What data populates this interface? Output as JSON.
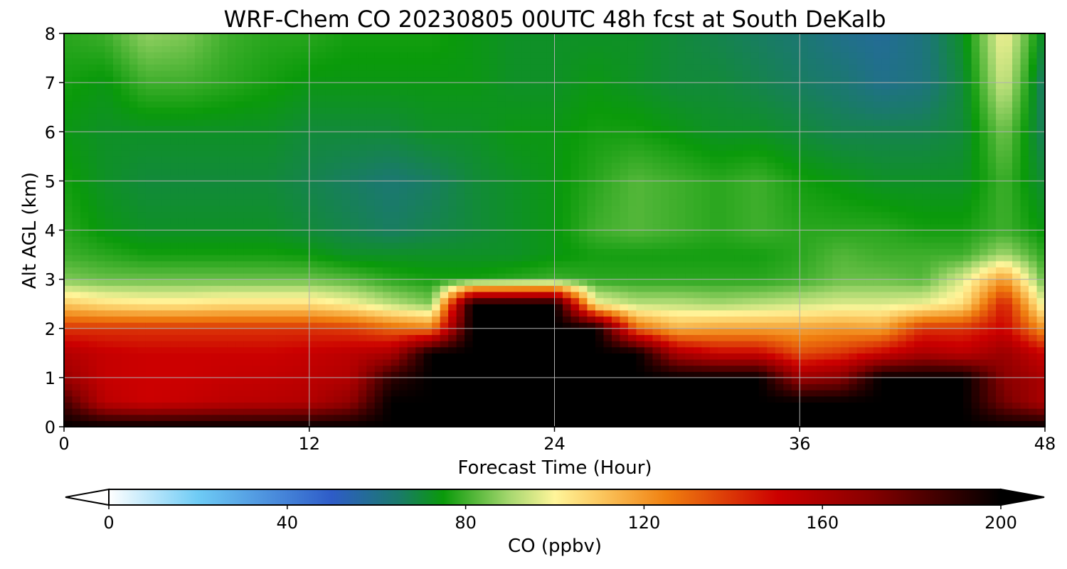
{
  "chart_data": {
    "type": "heatmap",
    "subtype": "filled-contour",
    "title": "WRF-Chem CO  20230805 00UTC 48h fcst at South DeKalb",
    "xlabel": "Forecast Time (Hour)",
    "ylabel": "Alt AGL (km)",
    "xlim": [
      0,
      48
    ],
    "ylim": [
      0,
      8
    ],
    "xticks": [
      "0",
      "12",
      "24",
      "36",
      "48"
    ],
    "yticks": [
      "0",
      "1",
      "2",
      "3",
      "4",
      "5",
      "6",
      "7",
      "8"
    ],
    "grid": true,
    "colorbar": {
      "label": "CO  (ppbv)",
      "orientation": "horizontal",
      "extend": "both",
      "range": [
        0,
        200
      ],
      "ticks": [
        "0",
        "40",
        "80",
        "120",
        "160",
        "200"
      ],
      "stops": [
        {
          "value": 0,
          "color": "#ffffff"
        },
        {
          "value": 20,
          "color": "#6ecbf5"
        },
        {
          "value": 50,
          "color": "#2e5cc8"
        },
        {
          "value": 65,
          "color": "#1a7a6a"
        },
        {
          "value": 75,
          "color": "#0a9a0a"
        },
        {
          "value": 90,
          "color": "#a8d870"
        },
        {
          "value": 100,
          "color": "#fff59a"
        },
        {
          "value": 110,
          "color": "#fbc860"
        },
        {
          "value": 125,
          "color": "#f08010"
        },
        {
          "value": 150,
          "color": "#cc0000"
        },
        {
          "value": 170,
          "color": "#8a0000"
        },
        {
          "value": 200,
          "color": "#000000"
        }
      ]
    },
    "x": [
      0,
      2,
      4,
      6,
      8,
      10,
      12,
      14,
      16,
      18,
      20,
      22,
      24,
      26,
      28,
      30,
      32,
      34,
      36,
      38,
      40,
      42,
      44,
      46,
      48
    ],
    "y": [
      0,
      0.5,
      1,
      1.5,
      2,
      2.5,
      3,
      3.5,
      4,
      5,
      6,
      7,
      8
    ],
    "z": [
      [
        200,
        200,
        200,
        200,
        200,
        200,
        200,
        200,
        200,
        200,
        200,
        200,
        200,
        200,
        200,
        200,
        200,
        200,
        200,
        200,
        200,
        200,
        200,
        200,
        200
      ],
      [
        185,
        155,
        150,
        152,
        155,
        156,
        158,
        168,
        200,
        200,
        200,
        200,
        200,
        200,
        200,
        200,
        200,
        200,
        200,
        200,
        200,
        200,
        200,
        175,
        160
      ],
      [
        165,
        152,
        150,
        150,
        152,
        153,
        155,
        158,
        190,
        200,
        200,
        200,
        200,
        200,
        200,
        200,
        200,
        200,
        165,
        170,
        200,
        200,
        200,
        170,
        160
      ],
      [
        158,
        152,
        150,
        150,
        150,
        150,
        152,
        155,
        160,
        200,
        200,
        200,
        200,
        200,
        200,
        160,
        150,
        150,
        135,
        140,
        150,
        160,
        155,
        165,
        150
      ],
      [
        140,
        140,
        140,
        140,
        140,
        140,
        140,
        138,
        130,
        125,
        200,
        200,
        200,
        200,
        130,
        115,
        118,
        118,
        118,
        120,
        118,
        140,
        140,
        150,
        120
      ],
      [
        110,
        105,
        103,
        103,
        105,
        105,
        105,
        100,
        92,
        86,
        200,
        200,
        200,
        100,
        92,
        92,
        90,
        92,
        94,
        96,
        96,
        98,
        105,
        145,
        95
      ],
      [
        86,
        84,
        84,
        84,
        84,
        84,
        84,
        82,
        78,
        76,
        76,
        78,
        80,
        78,
        78,
        78,
        78,
        78,
        80,
        84,
        84,
        82,
        96,
        120,
        82
      ],
      [
        80,
        78,
        76,
        76,
        76,
        76,
        75,
        72,
        72,
        72,
        72,
        72,
        74,
        76,
        76,
        76,
        76,
        76,
        78,
        82,
        80,
        80,
        80,
        90,
        78
      ],
      [
        78,
        74,
        72,
        72,
        72,
        72,
        70,
        68,
        66,
        68,
        70,
        72,
        74,
        80,
        82,
        80,
        78,
        80,
        78,
        78,
        78,
        76,
        76,
        80,
        74
      ],
      [
        76,
        72,
        70,
        70,
        70,
        70,
        68,
        66,
        64,
        66,
        70,
        72,
        74,
        78,
        82,
        80,
        78,
        80,
        76,
        74,
        72,
        72,
        72,
        80,
        70
      ],
      [
        74,
        72,
        72,
        72,
        72,
        72,
        70,
        70,
        70,
        72,
        72,
        74,
        74,
        76,
        76,
        74,
        72,
        72,
        70,
        68,
        68,
        68,
        70,
        85,
        66
      ],
      [
        76,
        74,
        80,
        80,
        78,
        76,
        74,
        74,
        74,
        74,
        74,
        72,
        72,
        74,
        72,
        70,
        70,
        68,
        66,
        64,
        60,
        62,
        70,
        95,
        64
      ],
      [
        78,
        80,
        88,
        86,
        80,
        78,
        78,
        76,
        76,
        76,
        74,
        72,
        72,
        72,
        72,
        70,
        68,
        66,
        64,
        60,
        58,
        62,
        72,
        100,
        70
      ]
    ]
  }
}
